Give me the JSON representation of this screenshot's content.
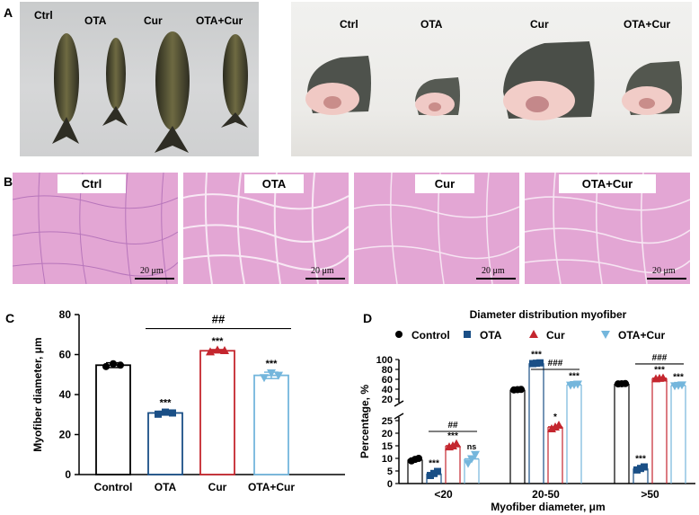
{
  "panel_letters": [
    "A",
    "B",
    "C",
    "D"
  ],
  "panel_a": {
    "fish_labels": [
      "Ctrl",
      "OTA",
      "Cur",
      "OTA+Cur"
    ],
    "steak_labels": [
      "Ctrl",
      "OTA",
      "Cur",
      "OTA+Cur"
    ]
  },
  "panel_b": {
    "labels": [
      "Ctrl",
      "OTA",
      "Cur",
      "OTA+Cur"
    ],
    "scale_bar_text": "20 μm"
  },
  "chart_data": [
    {
      "id": "C",
      "type": "bar",
      "title": "",
      "xlabel": "",
      "ylabel": "Myofiber diameter, μm",
      "categories": [
        "Control",
        "OTA",
        "Cur",
        "OTA+Cur"
      ],
      "values": [
        54.7,
        30.8,
        61.9,
        49.6
      ],
      "errors": [
        1.2,
        0.8,
        0.6,
        1.6
      ],
      "points": [
        [
          54.0,
          55.4,
          54.7
        ],
        [
          30.2,
          31.2,
          30.8
        ],
        [
          61.4,
          62.3,
          62.0
        ],
        [
          48.4,
          50.8,
          49.6
        ]
      ],
      "ylim": [
        0,
        80
      ],
      "yticks": [
        0,
        20,
        40,
        60,
        80
      ],
      "colors": [
        "#000000",
        "#1a4f86",
        "#c4262e",
        "#74b6dc"
      ],
      "significance": [
        "",
        "***",
        "***",
        "***"
      ],
      "comparison": {
        "from": "OTA",
        "to": "OTA+Cur",
        "label": "##"
      }
    },
    {
      "id": "D",
      "type": "bar",
      "title": "Diameter distribution myofiber",
      "xlabel": "Myofiber diameter, μm",
      "ylabel": "Percentage, %",
      "categories": [
        "<20",
        "20-50",
        ">50"
      ],
      "legend": [
        "Control",
        "OTA",
        "Cur",
        "OTA+Cur"
      ],
      "legend_position": "top",
      "colors": [
        "#000000",
        "#1a4f86",
        "#c4262e",
        "#74b6dc"
      ],
      "series": [
        {
          "name": "Control",
          "values": [
            9.5,
            39,
            51
          ],
          "points": [
            [
              9.0,
              9.6,
              10.0
            ],
            [
              38.5,
              39.0,
              39.5
            ],
            [
              50.7,
              51.0,
              51.3
            ]
          ]
        },
        {
          "name": "OTA",
          "values": [
            4.0,
            92.5,
            6.0
          ],
          "points": [
            [
              3.2,
              4.0,
              4.8
            ],
            [
              91.8,
              92.5,
              93.2
            ],
            [
              5.4,
              6.0,
              6.6
            ]
          ]
        },
        {
          "name": "Cur",
          "values": [
            15.0,
            22.5,
            62.0
          ],
          "points": [
            [
              14.6,
              15.0,
              15.8
            ],
            [
              21.8,
              22.5,
              23.2
            ],
            [
              61.2,
              62.0,
              62.8
            ]
          ]
        },
        {
          "name": "OTA+Cur",
          "values": [
            9.8,
            49.0,
            47.5
          ],
          "points": [
            [
              8.0,
              9.8,
              11.5
            ],
            [
              48.0,
              49.0,
              50.0
            ],
            [
              46.5,
              47.5,
              48.5
            ]
          ]
        }
      ],
      "significance": [
        [
          "",
          "***",
          "***",
          "ns"
        ],
        [
          "",
          "***",
          "*",
          "***"
        ],
        [
          "",
          "***",
          "***",
          "***"
        ]
      ],
      "comparisons": [
        {
          "group": "<20",
          "from": "OTA",
          "to": "OTA+Cur",
          "label": "##"
        },
        {
          "group": "20-50",
          "from": "OTA",
          "to": "OTA+Cur",
          "label": "###"
        },
        {
          "group": ">50",
          "from": "OTA",
          "to": "OTA+Cur",
          "label": "###"
        }
      ],
      "axis_break": {
        "lower": [
          0,
          25
        ],
        "upper": [
          20,
          100
        ]
      },
      "yticks_lower": [
        0,
        5,
        10,
        15,
        20,
        25
      ],
      "yticks_upper": [
        20,
        40,
        60,
        80,
        100
      ]
    }
  ]
}
